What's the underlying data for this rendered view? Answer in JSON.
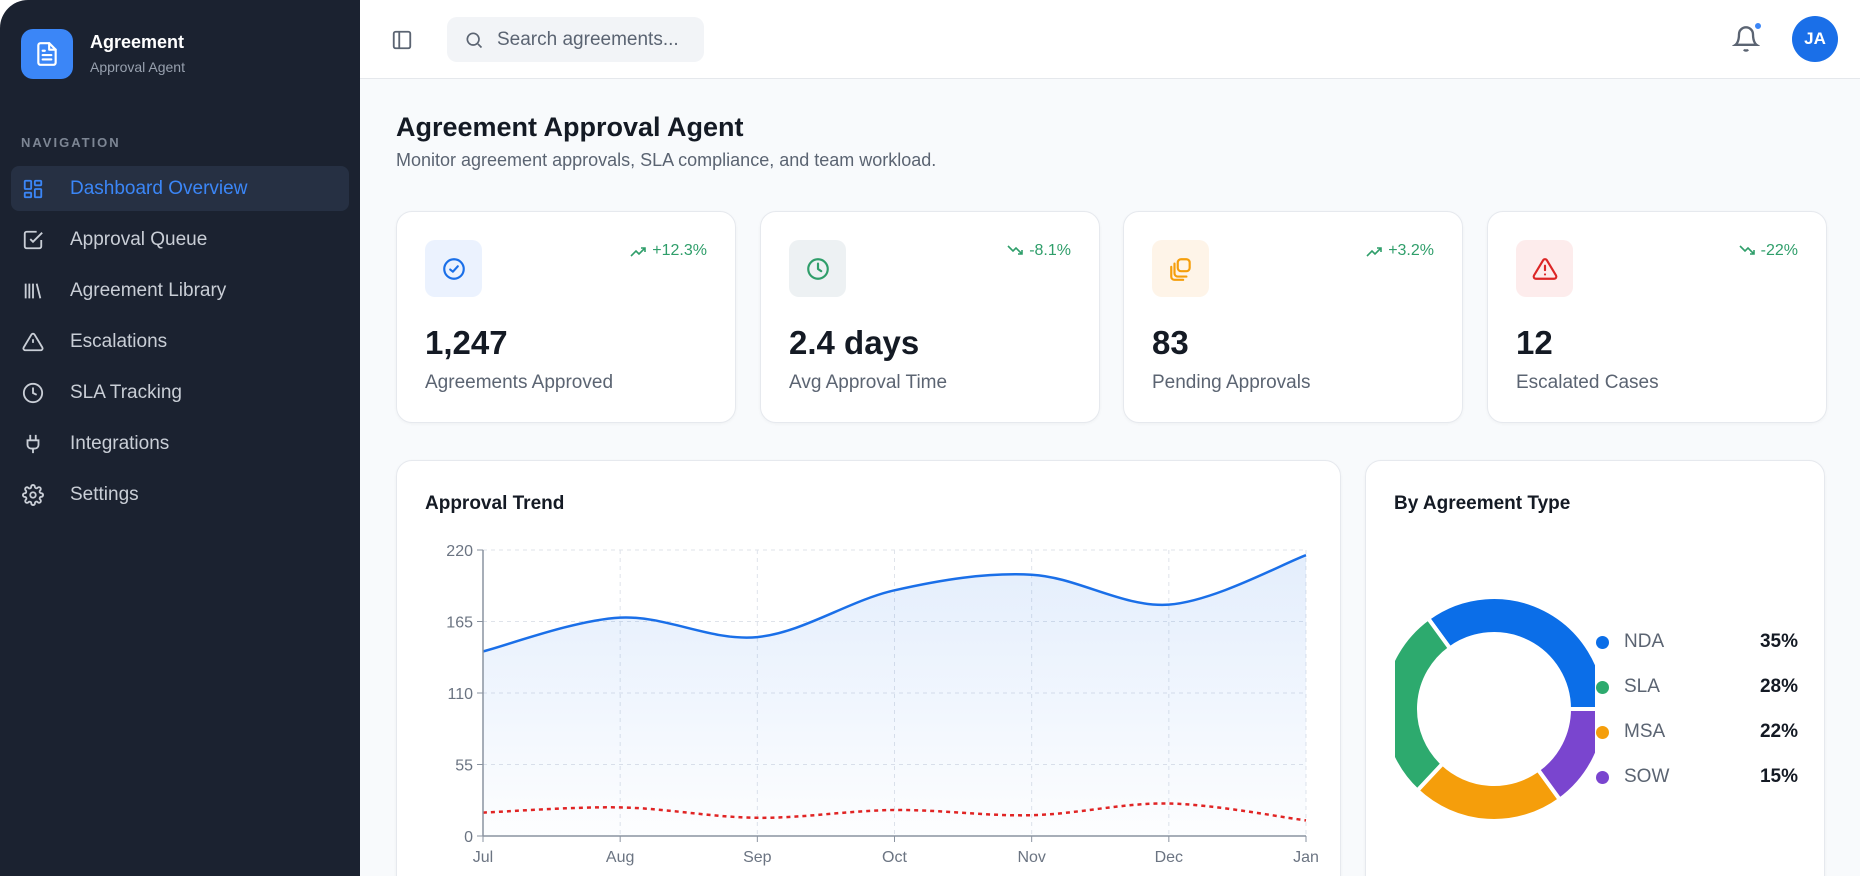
{
  "brand": {
    "title": "Agreement",
    "subtitle": "Approval Agent",
    "icon": "document-icon",
    "color": "#3b86f7"
  },
  "sidebar": {
    "section_label": "NAVIGATION",
    "items": [
      {
        "label": "Dashboard Overview",
        "icon": "dashboard-icon",
        "active": true
      },
      {
        "label": "Approval Queue",
        "icon": "checkbox-icon"
      },
      {
        "label": "Agreement Library",
        "icon": "library-icon"
      },
      {
        "label": "Escalations",
        "icon": "warning-icon"
      },
      {
        "label": "SLA Tracking",
        "icon": "clock-icon"
      },
      {
        "label": "Integrations",
        "icon": "plug-icon"
      },
      {
        "label": "Settings",
        "icon": "gear-icon"
      }
    ]
  },
  "header": {
    "search_placeholder": "Search agreements...",
    "avatar_initials": "JA",
    "notification_dot": true
  },
  "page": {
    "title": "Agreement Approval Agent",
    "subtitle": "Monitor agreement approvals, SLA compliance, and team workload."
  },
  "stats": [
    {
      "value": "1,247",
      "label": "Agreements Approved",
      "change": "+12.3%",
      "trend": "up",
      "icon": "check-circle-icon",
      "color": "#1a6fe8",
      "bg": "#ebf2fe"
    },
    {
      "value": "2.4 days",
      "label": "Avg Approval Time",
      "change": "-8.1%",
      "trend": "down",
      "icon": "clock-icon",
      "color": "#2f9e6a",
      "bg": "#edf1f3"
    },
    {
      "value": "83",
      "label": "Pending Approvals",
      "change": "+3.2%",
      "trend": "up",
      "icon": "copy-icon",
      "color": "#f59e0b",
      "bg": "#fef4e8"
    },
    {
      "value": "12",
      "label": "Escalated Cases",
      "change": "-22%",
      "trend": "down",
      "icon": "alert-triangle-icon",
      "color": "#dc2626",
      "bg": "#fdecec"
    }
  ],
  "chart_data": [
    {
      "type": "area",
      "title": "Approval Trend",
      "categories": [
        "Jul",
        "Aug",
        "Sep",
        "Oct",
        "Nov",
        "Dec",
        "Jan"
      ],
      "yticks": [
        "0",
        "55",
        "110",
        "165",
        "220"
      ],
      "ylim": [
        0,
        220
      ],
      "grid": true,
      "series": [
        {
          "values": [
            142,
            168,
            153,
            189,
            201,
            178,
            216
          ],
          "color": "#1a6fe8",
          "style": "solid-area"
        },
        {
          "values": [
            18,
            22,
            14,
            20,
            16,
            25,
            12
          ],
          "color": "#e02424",
          "style": "dashed"
        }
      ]
    },
    {
      "type": "pie",
      "title": "By Agreement Type",
      "donut": true,
      "legend": "right",
      "slices": [
        {
          "label": "NDA",
          "value": 35,
          "display": "35%",
          "color": "#0b6ee8"
        },
        {
          "label": "SLA",
          "value": 28,
          "display": "28%",
          "color": "#2daa6e"
        },
        {
          "label": "MSA",
          "value": 22,
          "display": "22%",
          "color": "#f59e0b"
        },
        {
          "label": "SOW",
          "value": 15,
          "display": "15%",
          "color": "#7a45cf"
        }
      ]
    }
  ]
}
